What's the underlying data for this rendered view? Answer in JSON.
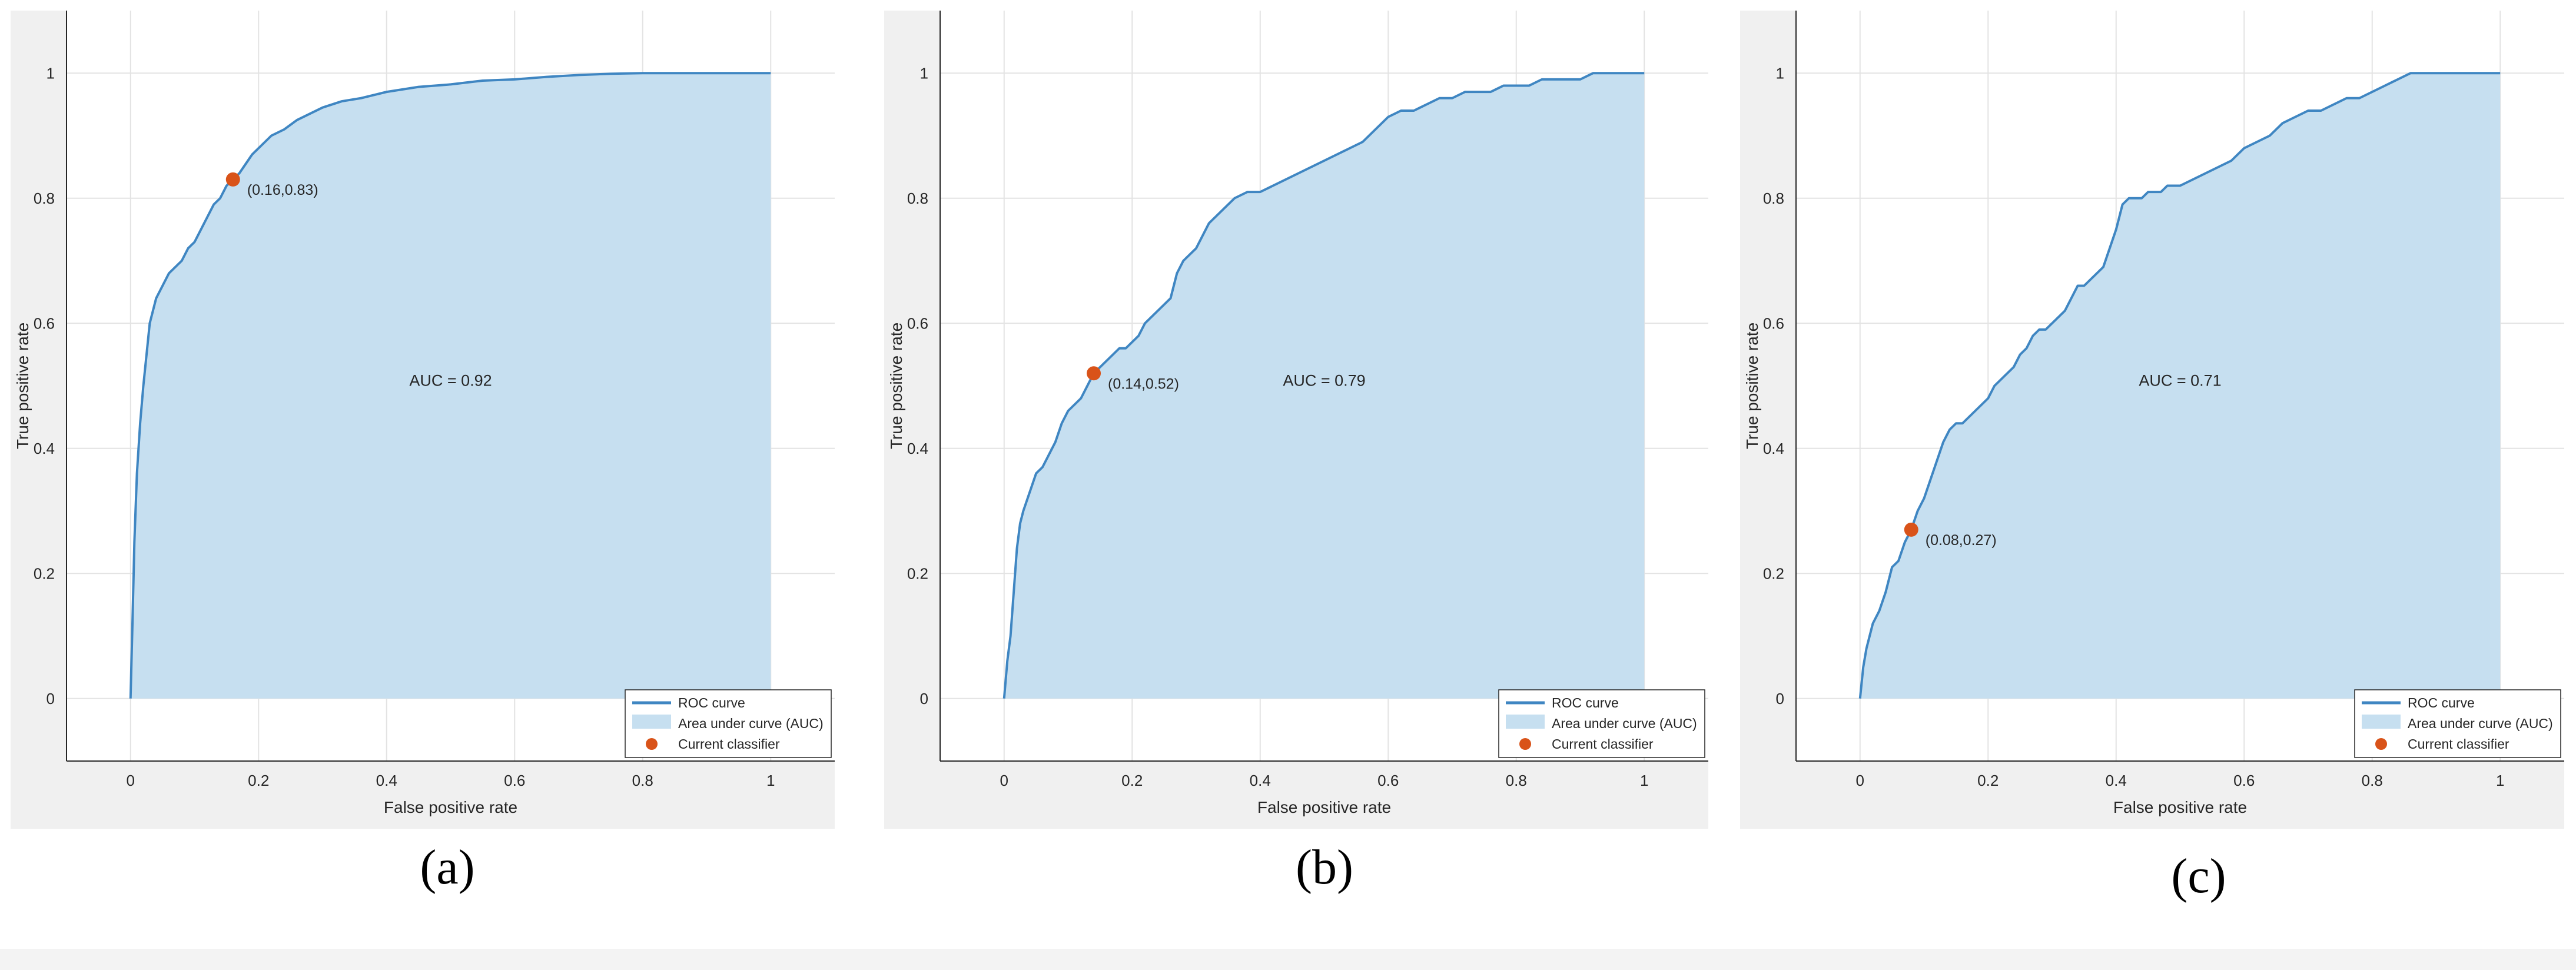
{
  "colors": {
    "curve": "#3f86c2",
    "fill": "#c6dff0",
    "point": "#d95319",
    "axes_bg": "#ffffff",
    "figure_bg": "#f0f0f0",
    "grid": "#e3e3e3",
    "text": "#262626"
  },
  "panels": [
    {
      "caption": "(a)",
      "chart_data": {
        "type": "area",
        "xlabel": "False positive rate",
        "ylabel": "True positive rate",
        "xlim": [
          -0.1,
          1.1
        ],
        "ylim": [
          -0.1,
          1.1
        ],
        "xticks": [
          "0",
          "0.2",
          "0.4",
          "0.6",
          "0.8",
          "1"
        ],
        "yticks": [
          "0",
          "0.2",
          "0.4",
          "0.6",
          "0.8",
          "1"
        ],
        "grid": true,
        "legend_location": "bottom-right",
        "legend": [
          "ROC curve",
          "Area under curve (AUC)",
          "Current classifier"
        ],
        "annotation": "AUC = 0.92",
        "annotation_pos": [
          0.5,
          0.5
        ],
        "point": {
          "x": 0.16,
          "y": 0.83,
          "label": "(0.16,0.83)"
        },
        "series": [
          {
            "name": "ROC curve",
            "x": [
              0,
              0.003,
              0.006,
              0.01,
              0.015,
              0.02,
              0.025,
              0.03,
              0.04,
              0.05,
              0.06,
              0.07,
              0.08,
              0.09,
              0.1,
              0.11,
              0.12,
              0.13,
              0.14,
              0.15,
              0.16,
              0.17,
              0.18,
              0.19,
              0.2,
              0.22,
              0.24,
              0.26,
              0.28,
              0.3,
              0.33,
              0.36,
              0.4,
              0.45,
              0.5,
              0.55,
              0.6,
              0.65,
              0.7,
              0.75,
              0.8,
              0.9,
              1
            ],
            "y": [
              0,
              0.12,
              0.25,
              0.36,
              0.44,
              0.5,
              0.55,
              0.6,
              0.64,
              0.66,
              0.68,
              0.69,
              0.7,
              0.72,
              0.73,
              0.75,
              0.77,
              0.79,
              0.8,
              0.82,
              0.83,
              0.84,
              0.855,
              0.87,
              0.88,
              0.9,
              0.91,
              0.925,
              0.935,
              0.945,
              0.955,
              0.96,
              0.97,
              0.978,
              0.982,
              0.988,
              0.99,
              0.994,
              0.997,
              0.999,
              1,
              1,
              1
            ]
          }
        ]
      }
    },
    {
      "caption": "(b)",
      "chart_data": {
        "type": "area",
        "xlabel": "False positive rate",
        "ylabel": "True positive rate",
        "xlim": [
          -0.1,
          1.1
        ],
        "ylim": [
          -0.1,
          1.1
        ],
        "xticks": [
          "0",
          "0.2",
          "0.4",
          "0.6",
          "0.8",
          "1"
        ],
        "yticks": [
          "0",
          "0.2",
          "0.4",
          "0.6",
          "0.8",
          "1"
        ],
        "grid": true,
        "legend_location": "bottom-right",
        "legend": [
          "ROC curve",
          "Area under curve (AUC)",
          "Current classifier"
        ],
        "annotation": "AUC = 0.79",
        "annotation_pos": [
          0.5,
          0.5
        ],
        "point": {
          "x": 0.14,
          "y": 0.52,
          "label": "(0.14,0.52)"
        },
        "series": [
          {
            "name": "ROC curve",
            "x": [
              0,
              0.005,
              0.01,
              0.015,
              0.02,
              0.025,
              0.03,
              0.04,
              0.05,
              0.06,
              0.07,
              0.08,
              0.09,
              0.1,
              0.11,
              0.12,
              0.13,
              0.14,
              0.15,
              0.16,
              0.17,
              0.18,
              0.19,
              0.2,
              0.21,
              0.22,
              0.23,
              0.24,
              0.25,
              0.26,
              0.27,
              0.28,
              0.29,
              0.3,
              0.31,
              0.32,
              0.33,
              0.34,
              0.35,
              0.36,
              0.38,
              0.4,
              0.42,
              0.44,
              0.46,
              0.48,
              0.5,
              0.52,
              0.54,
              0.56,
              0.58,
              0.6,
              0.62,
              0.64,
              0.66,
              0.68,
              0.7,
              0.72,
              0.74,
              0.76,
              0.78,
              0.8,
              0.82,
              0.84,
              0.86,
              0.88,
              0.9,
              0.92,
              0.94,
              0.96,
              0.98,
              1
            ],
            "y": [
              0,
              0.06,
              0.1,
              0.17,
              0.24,
              0.28,
              0.3,
              0.33,
              0.36,
              0.37,
              0.39,
              0.41,
              0.44,
              0.46,
              0.47,
              0.48,
              0.5,
              0.52,
              0.53,
              0.54,
              0.55,
              0.56,
              0.56,
              0.57,
              0.58,
              0.6,
              0.61,
              0.62,
              0.63,
              0.64,
              0.68,
              0.7,
              0.71,
              0.72,
              0.74,
              0.76,
              0.77,
              0.78,
              0.79,
              0.8,
              0.81,
              0.81,
              0.82,
              0.83,
              0.84,
              0.85,
              0.86,
              0.87,
              0.88,
              0.89,
              0.91,
              0.93,
              0.94,
              0.94,
              0.95,
              0.96,
              0.96,
              0.97,
              0.97,
              0.97,
              0.98,
              0.98,
              0.98,
              0.99,
              0.99,
              0.99,
              0.99,
              1,
              1,
              1,
              1,
              1
            ]
          }
        ]
      }
    },
    {
      "caption": "(c)",
      "chart_data": {
        "type": "area",
        "xlabel": "False positive rate",
        "ylabel": "True positive rate",
        "xlim": [
          -0.1,
          1.1
        ],
        "ylim": [
          -0.1,
          1.1
        ],
        "xticks": [
          "0",
          "0.2",
          "0.4",
          "0.6",
          "0.8",
          "1"
        ],
        "yticks": [
          "0",
          "0.2",
          "0.4",
          "0.6",
          "0.8",
          "1"
        ],
        "grid": true,
        "legend_location": "bottom-right",
        "legend": [
          "ROC curve",
          "Area under curve (AUC)",
          "Current classifier"
        ],
        "annotation": "AUC = 0.71",
        "annotation_pos": [
          0.5,
          0.5
        ],
        "point": {
          "x": 0.08,
          "y": 0.27,
          "label": "(0.08,0.27)"
        },
        "series": [
          {
            "name": "ROC curve",
            "x": [
              0,
              0.005,
              0.01,
              0.015,
              0.02,
              0.03,
              0.04,
              0.05,
              0.06,
              0.07,
              0.08,
              0.09,
              0.1,
              0.11,
              0.12,
              0.13,
              0.14,
              0.15,
              0.16,
              0.17,
              0.18,
              0.19,
              0.2,
              0.21,
              0.22,
              0.23,
              0.24,
              0.25,
              0.26,
              0.27,
              0.28,
              0.29,
              0.3,
              0.31,
              0.32,
              0.33,
              0.34,
              0.35,
              0.36,
              0.37,
              0.38,
              0.39,
              0.4,
              0.41,
              0.42,
              0.43,
              0.44,
              0.45,
              0.46,
              0.47,
              0.48,
              0.5,
              0.52,
              0.54,
              0.56,
              0.58,
              0.6,
              0.62,
              0.64,
              0.66,
              0.68,
              0.7,
              0.72,
              0.74,
              0.76,
              0.78,
              0.8,
              0.82,
              0.84,
              0.86,
              0.88,
              0.9,
              1
            ],
            "y": [
              0,
              0.05,
              0.08,
              0.1,
              0.12,
              0.14,
              0.17,
              0.21,
              0.22,
              0.25,
              0.27,
              0.3,
              0.32,
              0.35,
              0.38,
              0.41,
              0.43,
              0.44,
              0.44,
              0.45,
              0.46,
              0.47,
              0.48,
              0.5,
              0.51,
              0.52,
              0.53,
              0.55,
              0.56,
              0.58,
              0.59,
              0.59,
              0.6,
              0.61,
              0.62,
              0.64,
              0.66,
              0.66,
              0.67,
              0.68,
              0.69,
              0.72,
              0.75,
              0.79,
              0.8,
              0.8,
              0.8,
              0.81,
              0.81,
              0.81,
              0.82,
              0.82,
              0.83,
              0.84,
              0.85,
              0.86,
              0.88,
              0.89,
              0.9,
              0.92,
              0.93,
              0.94,
              0.94,
              0.95,
              0.96,
              0.96,
              0.97,
              0.98,
              0.99,
              1,
              1,
              1,
              1
            ]
          }
        ]
      }
    }
  ]
}
